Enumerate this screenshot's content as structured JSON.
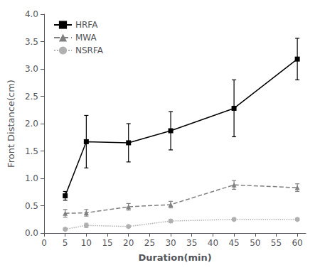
{
  "chart_data": {
    "type": "line",
    "x": [
      5,
      10,
      20,
      30,
      45,
      60
    ],
    "series": [
      {
        "name": "HRFA",
        "color": "#000000",
        "marker": "square",
        "line_style": "solid",
        "values": [
          0.68,
          1.67,
          1.65,
          1.87,
          2.28,
          3.18
        ],
        "errors": [
          0.08,
          0.48,
          0.35,
          0.35,
          0.52,
          0.38
        ]
      },
      {
        "name": "MWA",
        "color": "#808080",
        "marker": "triangle",
        "line_style": "dashed",
        "values": [
          0.36,
          0.37,
          0.48,
          0.52,
          0.88,
          0.83
        ],
        "errors": [
          0.07,
          0.06,
          0.06,
          0.06,
          0.08,
          0.07
        ]
      },
      {
        "name": "NSRFA",
        "color": "#b0b0b0",
        "marker": "circle",
        "line_style": "dotted",
        "values": [
          0.07,
          0.14,
          0.12,
          0.22,
          0.25,
          0.25
        ],
        "errors": [
          0.02,
          0.04,
          0.02,
          0.03,
          0.02,
          0.02
        ]
      }
    ],
    "xlabel": "Duration(min)",
    "ylabel": "Front Distance(cm)",
    "xlim": [
      0,
      62
    ],
    "ylim": [
      0,
      4.0
    ],
    "xticks": [
      0,
      5,
      10,
      15,
      20,
      25,
      30,
      35,
      40,
      45,
      50,
      55,
      60
    ],
    "yticks": [
      {
        "value": 0,
        "label": "0.0"
      },
      0.5,
      {
        "value": 1,
        "label": "1.0"
      },
      1.5,
      {
        "value": 2,
        "label": "2.0"
      },
      2.5,
      {
        "value": 3,
        "label": "3.0"
      },
      3.5,
      {
        "value": 4,
        "label": "4.0"
      }
    ],
    "grid": false,
    "legend": "upper left"
  }
}
